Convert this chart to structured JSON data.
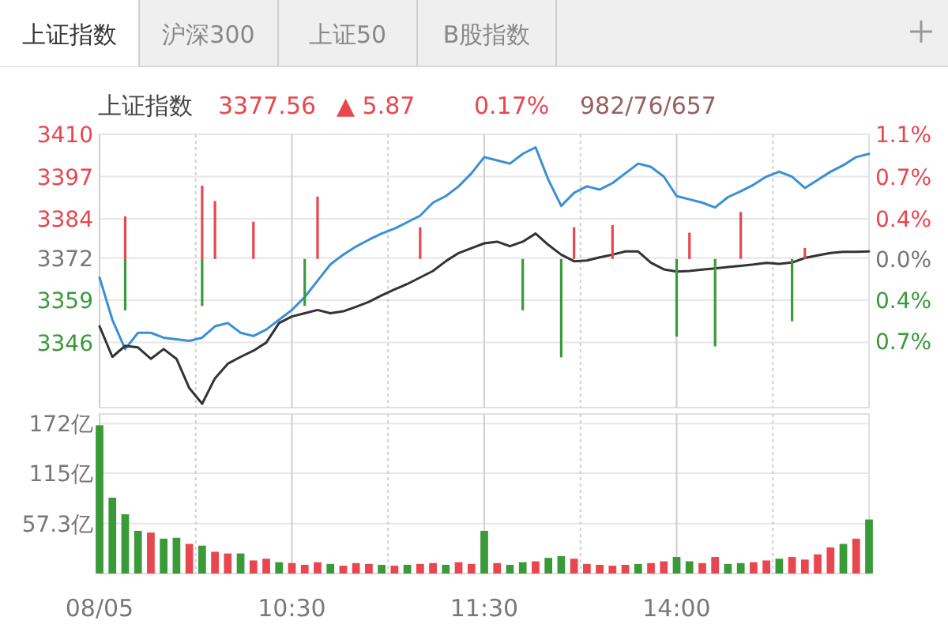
{
  "chart_data": [
    {
      "type": "line",
      "title": "上证指数",
      "annotations": [
        "上证指数",
        "沪深300",
        "上证50",
        "B股指数",
        "3377.56",
        "▲ 5.87",
        "0.17%",
        "982/76/657"
      ],
      "categories": [
        null,
        null,
        null,
        null,
        null,
        null,
        null,
        null,
        null,
        null,
        null,
        null,
        null,
        null,
        null,
        null,
        null,
        null,
        null,
        null,
        null,
        null,
        null,
        null,
        null,
        null,
        null,
        null,
        null,
        null,
        null,
        null,
        null,
        null,
        null,
        null,
        null,
        null,
        null,
        null,
        null,
        null,
        null,
        null,
        null,
        null,
        null,
        null,
        null,
        null,
        null,
        null,
        null,
        null,
        null,
        null,
        null,
        null,
        null,
        null,
        null
      ],
      "series": [
        {
          "color": "#3b8fd4",
          "values": [
            3366,
            3353,
            3344,
            3349,
            3349,
            3347.5,
            3347,
            3346.5,
            3347.5,
            3351,
            3352,
            3349,
            3348,
            3350,
            3353,
            3356,
            3360,
            3365,
            3370,
            3373,
            3375.5,
            3377.6,
            3379.5,
            3381,
            3383,
            3385,
            3389,
            3391,
            3394,
            3398,
            3403,
            3402,
            3401,
            3404,
            3406,
            3396,
            3388,
            3392,
            3394,
            3393,
            3395,
            3398,
            3401,
            3400,
            3397,
            3391,
            3390,
            3389,
            3387.5,
            3390.7,
            3392.5,
            3394.5,
            3397,
            3398.5,
            3397,
            3393.5,
            3396,
            3398.5,
            3400.5,
            3403,
            3404
          ]
        },
        {
          "color": "#333333",
          "values": [
            3351,
            3341.6,
            3345,
            3344.5,
            3341,
            3344,
            3341,
            3332,
            3327.2,
            3335,
            3339.5,
            3341.6,
            3343.5,
            3346,
            3352,
            3354,
            3355,
            3356,
            3355,
            3355.6,
            3357,
            3358.5,
            3360.5,
            3362.3,
            3364,
            3366,
            3368,
            3371,
            3373.5,
            3375,
            3376.5,
            3377,
            3375.6,
            3377,
            3379.5,
            3376,
            3373,
            3371,
            3371.2,
            3372.2,
            3373,
            3374,
            3374,
            3370.5,
            3368.5,
            3367.8,
            3368,
            3368.4,
            3368.8,
            3369.2,
            3369.6,
            3370,
            3370.5,
            3370.2,
            3370.6,
            3372,
            3372.8,
            3373.5,
            3373.9,
            3373.9,
            3374
          ]
        },
        {
          "type": "bar",
          "axis": "y2",
          "color": "#e8474f",
          "values": [
            null,
            null,
            0.39,
            null,
            null,
            null,
            null,
            null,
            0.67,
            0.53,
            null,
            null,
            0.34,
            null,
            null,
            null,
            null,
            0.57,
            null,
            null,
            null,
            null,
            null,
            null,
            null,
            0.29,
            null,
            null,
            null,
            null,
            null,
            null,
            null,
            null,
            null,
            null,
            null,
            0.29,
            null,
            null,
            0.31,
            null,
            null,
            null,
            null,
            null,
            0.24,
            null,
            null,
            null,
            0.43,
            null,
            null,
            null,
            null,
            0.1,
            null,
            null,
            null,
            null,
            null
          ]
        },
        {
          "type": "bar",
          "axis": "y2",
          "color": "#3a9a3a",
          "values": [
            null,
            null,
            -0.47,
            null,
            null,
            null,
            null,
            null,
            -0.43,
            null,
            null,
            null,
            null,
            null,
            null,
            null,
            -0.43,
            null,
            null,
            null,
            null,
            null,
            null,
            null,
            null,
            null,
            null,
            null,
            null,
            null,
            null,
            null,
            null,
            -0.47,
            null,
            null,
            -0.9,
            null,
            null,
            null,
            null,
            null,
            null,
            null,
            null,
            -0.71,
            null,
            null,
            -0.8,
            null,
            null,
            null,
            null,
            null,
            -0.57,
            null,
            null,
            null,
            null,
            null,
            null
          ]
        }
      ],
      "ylim": [
        3326,
        3410
      ],
      "yticks": [
        3410,
        3397,
        3384,
        3372,
        3359,
        3346
      ],
      "y2lim": [
        -1.36,
        1.14
      ],
      "y2ticks": [
        {
          "value": 1.14,
          "label": "1.1%"
        },
        {
          "value": 0.75,
          "label": "0.7%"
        },
        {
          "value": 0.37,
          "label": "0.4%"
        },
        {
          "value": 0,
          "label": "0.0%"
        },
        {
          "value": -0.38,
          "label": "0.4%"
        },
        {
          "value": -0.75,
          "label": "0.7%"
        }
      ],
      "grid": true,
      "tick_labels": "y"
    },
    {
      "type": "bar",
      "categories": [
        "08/05",
        null,
        null,
        null,
        null,
        null,
        null,
        null,
        null,
        null,
        null,
        null,
        null,
        null,
        null,
        "10:30",
        null,
        null,
        null,
        null,
        null,
        null,
        null,
        null,
        null,
        null,
        null,
        null,
        null,
        null,
        "11:30",
        null,
        null,
        null,
        null,
        null,
        null,
        null,
        null,
        null,
        null,
        null,
        null,
        null,
        null,
        "14:00",
        null,
        null,
        null,
        null,
        null,
        null,
        null,
        null,
        null,
        null,
        null,
        null,
        null,
        null,
        null
      ],
      "values": [
        170,
        87,
        68,
        49,
        47,
        40,
        41,
        34,
        32,
        25,
        23,
        23,
        15,
        17,
        13,
        12,
        10,
        13,
        11,
        9,
        12,
        11,
        10,
        9,
        10,
        11,
        12,
        10,
        13,
        11,
        49,
        12,
        10,
        13,
        14,
        18,
        20,
        17,
        11,
        10,
        9,
        10,
        11,
        12,
        14,
        19,
        14,
        12,
        19,
        11,
        12,
        13,
        15,
        17,
        19,
        16,
        22,
        30,
        34,
        40,
        62
      ],
      "colors": [
        "#3a9a3a",
        "#3a9a3a",
        "#3a9a3a",
        "#3a9a3a",
        "#e8474f",
        "#3a9a3a",
        "#3a9a3a",
        "#e8474f",
        "#3a9a3a",
        "#e8474f",
        "#e8474f",
        "#3a9a3a",
        "#e8474f",
        "#e8474f",
        "#3a9a3a",
        "#e8474f",
        "#e8474f",
        "#e8474f",
        "#3a9a3a",
        "#e8474f",
        "#e8474f",
        "#e8474f",
        "#3a9a3a",
        "#e8474f",
        "#3a9a3a",
        "#e8474f",
        "#e8474f",
        "#3a9a3a",
        "#e8474f",
        "#e8474f",
        "#3a9a3a",
        "#e8474f",
        "#3a9a3a",
        "#3a9a3a",
        "#e8474f",
        "#3a9a3a",
        "#3a9a3a",
        "#e8474f",
        "#e8474f",
        "#e8474f",
        "#e8474f",
        "#e8474f",
        "#3a9a3a",
        "#e8474f",
        "#e8474f",
        "#3a9a3a",
        "#3a9a3a",
        "#e8474f",
        "#e8474f",
        "#3a9a3a",
        "#3a9a3a",
        "#e8474f",
        "#e8474f",
        "#3a9a3a",
        "#e8474f",
        "#e8474f",
        "#e8474f",
        "#e8474f",
        "#3a9a3a",
        "#e8474f",
        "#3a9a3a"
      ],
      "ylim": [
        0,
        183
      ],
      "yticks": [
        {
          "value": 57.3,
          "label": "57.3亿"
        },
        {
          "value": 115,
          "label": "115亿"
        },
        {
          "value": 172,
          "label": "172亿"
        }
      ],
      "grid": true
    }
  ]
}
